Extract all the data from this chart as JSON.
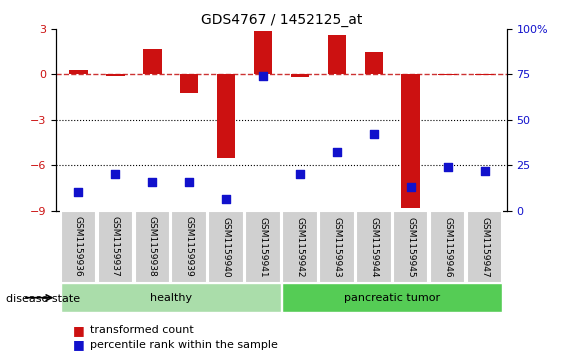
{
  "title": "GDS4767 / 1452125_at",
  "samples": [
    "GSM1159936",
    "GSM1159937",
    "GSM1159938",
    "GSM1159939",
    "GSM1159940",
    "GSM1159941",
    "GSM1159942",
    "GSM1159943",
    "GSM1159944",
    "GSM1159945",
    "GSM1159946",
    "GSM1159947"
  ],
  "transformed_count": [
    0.3,
    -0.1,
    1.7,
    -1.2,
    -5.5,
    2.9,
    -0.15,
    2.6,
    1.5,
    -8.8,
    -0.05,
    -0.05
  ],
  "percentile_rank": [
    10,
    20,
    16,
    16,
    6.5,
    74,
    20,
    32,
    42,
    13,
    24,
    22
  ],
  "ylim_left": [
    -9,
    3
  ],
  "ylim_right": [
    0,
    100
  ],
  "yticks_left": [
    -9,
    -6,
    -3,
    0,
    3
  ],
  "yticks_right": [
    0,
    25,
    50,
    75,
    100
  ],
  "hline_y": 0,
  "dotted_lines": [
    -3,
    -6
  ],
  "bar_color": "#cc1111",
  "scatter_color": "#1111cc",
  "hline_color": "#cc3333",
  "healthy_indices": [
    0,
    1,
    2,
    3,
    4,
    5
  ],
  "tumor_indices": [
    6,
    7,
    8,
    9,
    10,
    11
  ],
  "healthy_label": "healthy",
  "tumor_label": "pancreatic tumor",
  "healthy_color": "#aaddaa",
  "tumor_color": "#55cc55",
  "disease_state_label": "disease state",
  "legend1_label": "transformed count",
  "legend2_label": "percentile rank within the sample",
  "bar_width": 0.5
}
